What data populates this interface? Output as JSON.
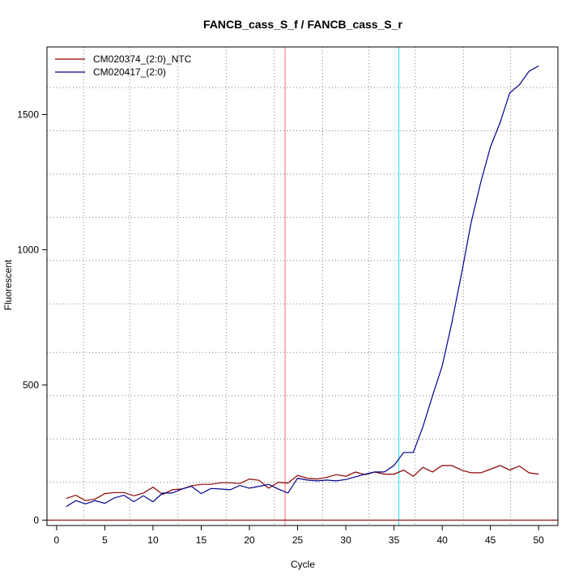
{
  "chart_data": {
    "type": "line",
    "title": "FANCB_cass_S_f / FANCB_cass_S_r",
    "xlabel": "Cycle",
    "ylabel": "Fluorescent",
    "xlim": [
      -1,
      52
    ],
    "ylim": [
      -20,
      1750
    ],
    "x_ticks": [
      0,
      5,
      10,
      15,
      20,
      25,
      30,
      35,
      40,
      45,
      50
    ],
    "y_ticks": [
      0,
      500,
      1000,
      1500
    ],
    "grid": true,
    "grid_style": "dotted",
    "grid_x": [
      2.8,
      7.6,
      12.6,
      17.6,
      22.6,
      27.6,
      32.4,
      37.2,
      42.2,
      47.1
    ],
    "grid_y": [
      140,
      300,
      460,
      620,
      800,
      960,
      1120,
      1280,
      1440,
      1600
    ],
    "legend_position": "top-left",
    "threshold_lines": [
      {
        "axis": "x",
        "value": 23.7,
        "color": "#ff8080"
      },
      {
        "axis": "x",
        "value": 35.5,
        "color": "#40e0e8"
      },
      {
        "axis": "y",
        "value": 0,
        "color": "#8b0000"
      }
    ],
    "x": [
      1,
      2,
      3,
      4,
      5,
      6,
      7,
      8,
      9,
      10,
      11,
      12,
      13,
      14,
      15,
      16,
      17,
      18,
      19,
      20,
      21,
      22,
      23,
      24,
      25,
      26,
      27,
      28,
      29,
      30,
      31,
      32,
      33,
      34,
      35,
      36,
      37,
      38,
      39,
      40,
      41,
      42,
      43,
      44,
      45,
      46,
      47,
      48,
      49,
      50
    ],
    "series": [
      {
        "name": "CM020374_(2:0)_NTC",
        "color": "#8b0000",
        "values": [
          80,
          92,
          72,
          78,
          98,
          102,
          102,
          90,
          100,
          122,
          95,
          112,
          115,
          127,
          132,
          132,
          138,
          138,
          135,
          152,
          147,
          118,
          140,
          137,
          165,
          155,
          152,
          158,
          168,
          162,
          178,
          168,
          178,
          170,
          170,
          185,
          162,
          195,
          178,
          202,
          202,
          185,
          175,
          175,
          188,
          202,
          185,
          200,
          175,
          170
        ]
      },
      {
        "name": "CM020417_(2:0)",
        "color": "#00008b",
        "values": [
          50,
          72,
          60,
          72,
          62,
          82,
          92,
          68,
          90,
          68,
          100,
          100,
          115,
          125,
          98,
          117,
          115,
          112,
          128,
          118,
          125,
          132,
          115,
          100,
          155,
          148,
          145,
          148,
          145,
          150,
          160,
          170,
          178,
          178,
          202,
          250,
          250,
          345,
          460,
          570,
          730,
          910,
          1100,
          1250,
          1380,
          1470,
          1580,
          1610,
          1660,
          1680
        ]
      }
    ]
  }
}
